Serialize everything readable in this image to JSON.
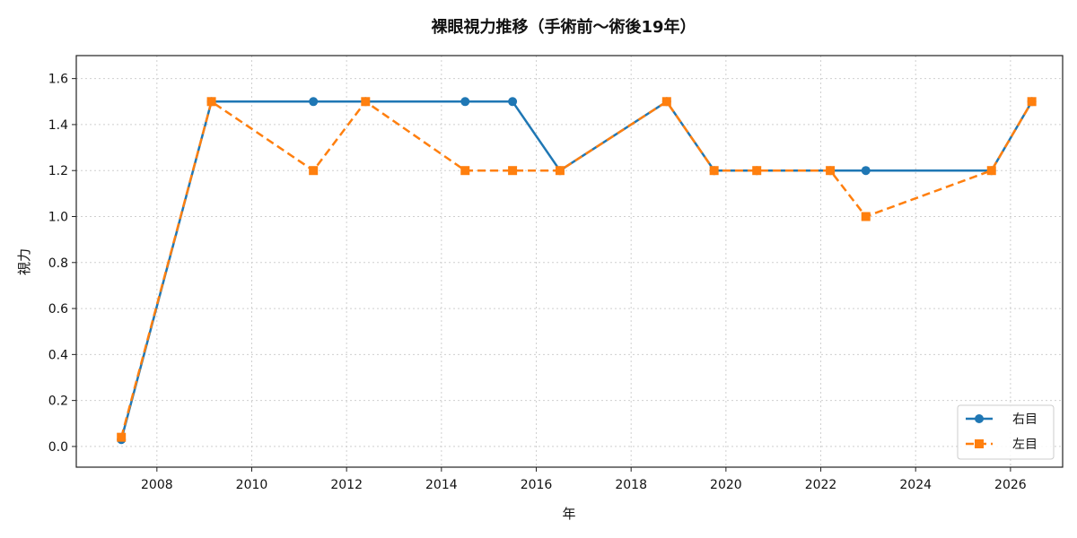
{
  "chart_data": {
    "type": "line",
    "title": "裸眼視力推移（手術前〜術後19年）",
    "xlabel": "年",
    "ylabel": "視力",
    "xlim": [
      2006.3,
      2027.1
    ],
    "ylim": [
      -0.09,
      1.7
    ],
    "xticks": [
      2008,
      2010,
      2012,
      2014,
      2016,
      2018,
      2020,
      2022,
      2024,
      2026
    ],
    "yticks": [
      0.0,
      0.2,
      0.4,
      0.6,
      0.8,
      1.0,
      1.2,
      1.4,
      1.6
    ],
    "ytick_labels": [
      "0.0",
      "0.2",
      "0.4",
      "0.6",
      "0.8",
      "1.0",
      "1.2",
      "1.4",
      "1.6"
    ],
    "grid": true,
    "legend_position": "bottom-right",
    "series": [
      {
        "name": "右目",
        "color": "#1f77b4",
        "line_style": "solid",
        "marker": "circle",
        "x": [
          2007.25,
          2009.15,
          2011.3,
          2012.4,
          2014.5,
          2015.5,
          2016.5,
          2018.75,
          2019.75,
          2020.65,
          2022.2,
          2022.95,
          2025.6,
          2026.45
        ],
        "y": [
          0.03,
          1.5,
          1.5,
          1.5,
          1.5,
          1.5,
          1.2,
          1.5,
          1.2,
          1.2,
          1.2,
          1.2,
          1.2,
          1.5
        ]
      },
      {
        "name": "左目",
        "color": "#ff7f0e",
        "line_style": "dashed",
        "marker": "square",
        "x": [
          2007.25,
          2009.15,
          2011.3,
          2012.4,
          2014.5,
          2015.5,
          2016.5,
          2018.75,
          2019.75,
          2020.65,
          2022.2,
          2022.95,
          2025.6,
          2026.45
        ],
        "y": [
          0.04,
          1.5,
          1.2,
          1.5,
          1.2,
          1.2,
          1.2,
          1.5,
          1.2,
          1.2,
          1.2,
          1.0,
          1.2,
          1.5
        ]
      }
    ]
  }
}
